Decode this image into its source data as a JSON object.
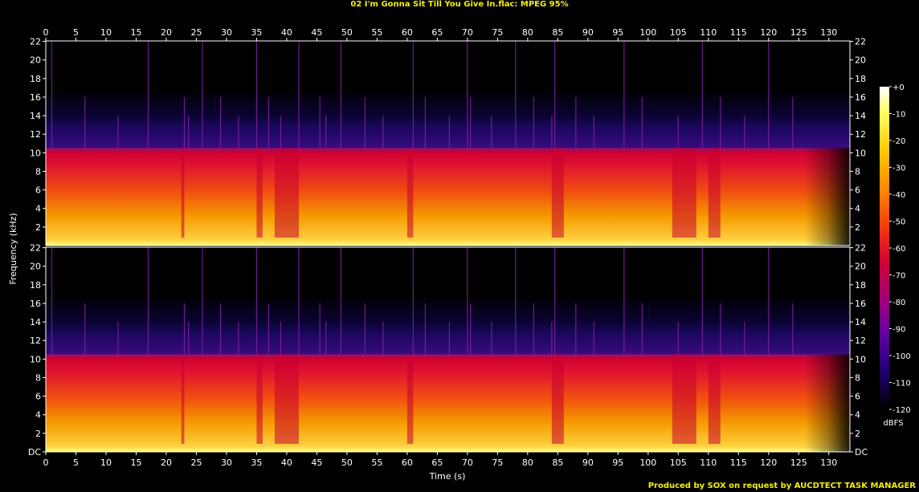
{
  "title": "02 I'm Gonna Sit Till You Give In.flac: MPEG 95%",
  "footer": "Produced by SOX on request by AUCDTECT TASK MANAGER",
  "colors": {
    "title": "#f5f000",
    "background": "#000000",
    "axis": "#ffffff"
  },
  "chart_data": {
    "type": "heatmap",
    "subtype": "spectrogram",
    "xlabel": "Time (s)",
    "ylabel": "Frequency (kHz)",
    "xlim": [
      0,
      133.5
    ],
    "ylim": [
      0,
      22.05
    ],
    "x_ticks": [
      "0",
      "5",
      "10",
      "15",
      "20",
      "25",
      "30",
      "35",
      "40",
      "45",
      "50",
      "55",
      "60",
      "65",
      "70",
      "75",
      "80",
      "85",
      "90",
      "95",
      "100",
      "105",
      "110",
      "115",
      "120",
      "125",
      "130"
    ],
    "y_ticks": [
      "DC",
      "2",
      "4",
      "6",
      "8",
      "10",
      "12",
      "14",
      "16",
      "18",
      "20",
      "22"
    ],
    "channels": 2,
    "cutoff_khz": 10.5,
    "colorbar": {
      "label": "dBFS",
      "range": [
        -120,
        0
      ],
      "ticks": [
        "+0",
        "-10",
        "-20",
        "-30",
        "-40",
        "-50",
        "-60",
        "-70",
        "-80",
        "-90",
        "-100",
        "-110",
        "-120"
      ]
    },
    "quiet_segments_s": [
      [
        22.5,
        23
      ],
      [
        35,
        36
      ],
      [
        38,
        42
      ],
      [
        60,
        61
      ],
      [
        84,
        86
      ],
      [
        104,
        108
      ],
      [
        110,
        112
      ]
    ],
    "fade_out_s": [
      126,
      133.5
    ],
    "transient_times_s": [
      1,
      6.5,
      12,
      17,
      23,
      23.7,
      26,
      29,
      32,
      35,
      37,
      39,
      42,
      45.5,
      46.5,
      49,
      53,
      56,
      61,
      63,
      67,
      70,
      70.5,
      74,
      78,
      81,
      84,
      84.5,
      88,
      91,
      96,
      99,
      105,
      109,
      112,
      116,
      120,
      124
    ]
  }
}
